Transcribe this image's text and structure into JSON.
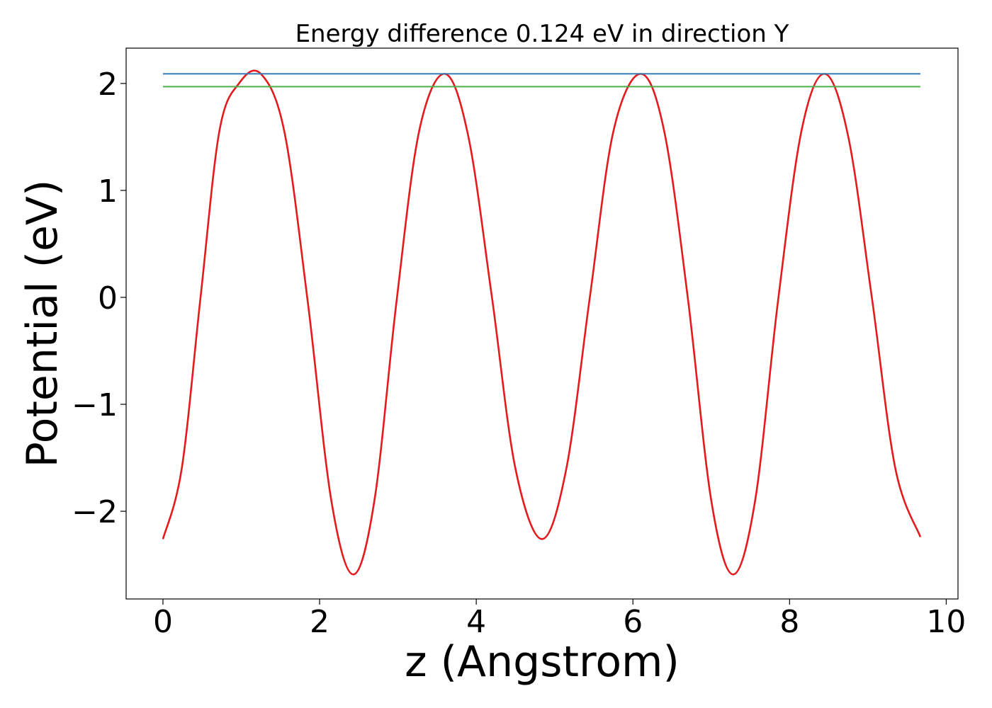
{
  "chart_data": {
    "type": "line",
    "title": "Energy difference 0.124 eV in direction Y",
    "xlabel": "z (Angstrom)",
    "ylabel": "Potential (eV)",
    "xlim": [
      -0.47,
      10.15
    ],
    "ylim": [
      -2.82,
      2.33
    ],
    "xticks": [
      0,
      2,
      4,
      6,
      8,
      10
    ],
    "xtick_labels": [
      "0",
      "2",
      "4",
      "6",
      "8",
      "10"
    ],
    "yticks": [
      -2,
      -1,
      0,
      1,
      2
    ],
    "ytick_labels": [
      "−2",
      "−1",
      "0",
      "1",
      "2"
    ],
    "grid": false,
    "legend": "none",
    "series": [
      {
        "color": "#e41a1c",
        "x": [
          0,
          0.24,
          0.48,
          0.72,
          0.97,
          1.25,
          1.55,
          1.85,
          2.15,
          2.43,
          2.7,
          2.98,
          3.27,
          3.6,
          3.9,
          4.2,
          4.5,
          4.84,
          5.15,
          5.45,
          5.75,
          6.1,
          6.4,
          6.7,
          7.0,
          7.28,
          7.56,
          7.85,
          8.15,
          8.45,
          8.75,
          9.05,
          9.35,
          9.67
        ],
        "y": [
          -2.26,
          -1.6,
          0.0,
          1.55,
          2.0,
          2.09,
          1.55,
          -0.05,
          -1.9,
          -2.59,
          -1.9,
          -0.05,
          1.55,
          2.09,
          1.5,
          0.0,
          -1.6,
          -2.26,
          -1.6,
          0.0,
          1.55,
          2.09,
          1.55,
          0.0,
          -1.9,
          -2.59,
          -1.9,
          -0.05,
          1.55,
          2.09,
          1.5,
          0.0,
          -1.6,
          -2.24
        ]
      },
      {
        "color": "#377eb8",
        "x": [
          0,
          9.67
        ],
        "y": [
          2.09,
          2.09
        ]
      },
      {
        "color": "#4daf4a",
        "x": [
          0,
          9.67
        ],
        "y": [
          1.97,
          1.97
        ]
      }
    ]
  }
}
